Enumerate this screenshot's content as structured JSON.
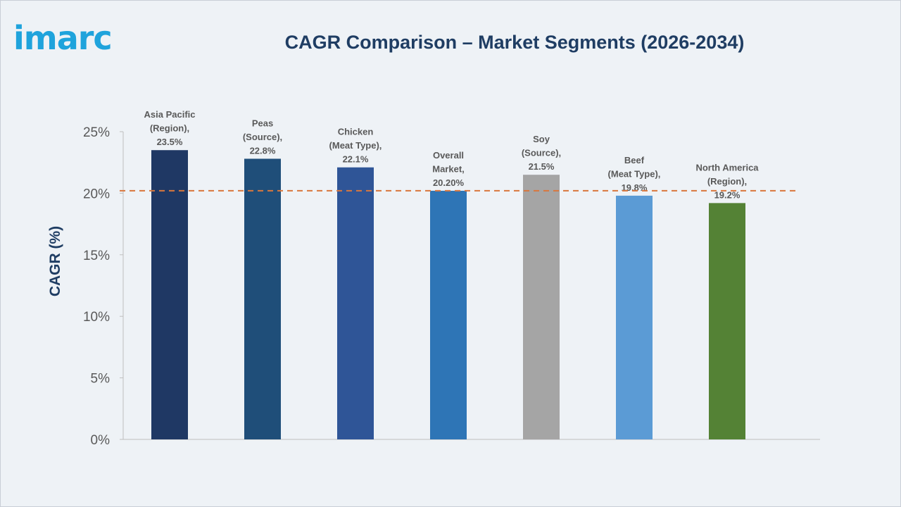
{
  "header": {
    "logo_text": "imarc",
    "title": "CAGR Comparison – Market Segments (2026-2034)"
  },
  "chart_data": {
    "type": "bar",
    "title": "CAGR Comparison – Market Segments (2026-2034)",
    "xlabel": "",
    "ylabel": "CAGR (%)",
    "ylim": [
      0,
      25
    ],
    "yticks": [
      "0%",
      "5%",
      "10%",
      "15%",
      "20%",
      "25%"
    ],
    "grid": false,
    "reference_line": {
      "value": 20.2,
      "style": "dashed",
      "color": "#d9773d"
    },
    "categories": [
      "Asia Pacific (Region)",
      "Peas (Source)",
      "Chicken (Meat Type)",
      "Overall Market",
      "Soy (Source)",
      "Beef (Meat Type)",
      "North America (Region)"
    ],
    "values": [
      23.5,
      22.8,
      22.1,
      20.2,
      21.5,
      19.8,
      19.2
    ],
    "bar_colors": [
      "#1f3864",
      "#1f4e79",
      "#2f5597",
      "#2e75b6",
      "#a5a5a5",
      "#5b9bd5",
      "#548235"
    ],
    "data_labels": [
      [
        "Asia Pacific",
        "(Region),",
        "23.5%"
      ],
      [
        "Peas",
        "(Source),",
        "22.8%"
      ],
      [
        "Chicken",
        "(Meat Type),",
        "22.1%"
      ],
      [
        "Overall",
        "Market,",
        "20.20%"
      ],
      [
        "Soy",
        "(Source),",
        "21.5%"
      ],
      [
        "Beef",
        "(Meat Type),",
        "19.8%"
      ],
      [
        "North America",
        "(Region),",
        "19.2%"
      ]
    ]
  }
}
